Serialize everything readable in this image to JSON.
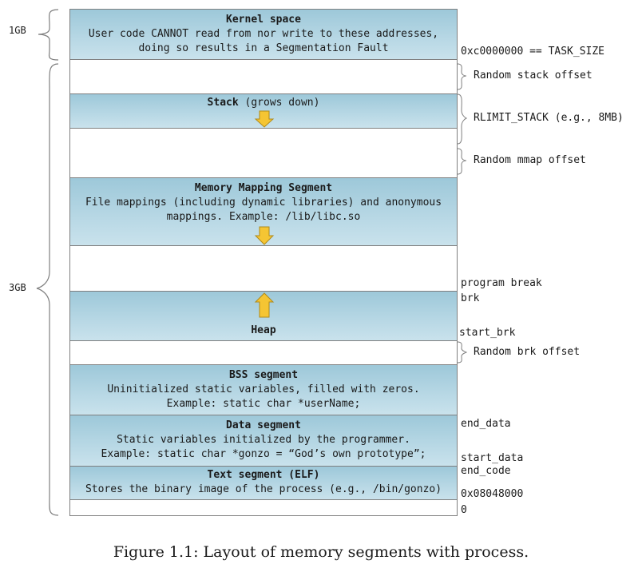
{
  "sizes": {
    "kernel": "1GB",
    "user": "3GB"
  },
  "segments": {
    "kernel": {
      "title": "Kernel space",
      "desc": "User code CANNOT read from nor write to these addresses,\ndoing so results in a Segmentation Fault"
    },
    "stack": {
      "title": "Stack",
      "suffix": " (grows down)"
    },
    "mmap": {
      "title": "Memory Mapping Segment",
      "desc": "File mappings (including dynamic libraries) and anonymous\nmappings. Example: /lib/libc.so"
    },
    "heap": {
      "title": "Heap"
    },
    "bss": {
      "title": "BSS segment",
      "desc": "Uninitialized static variables, filled with zeros.\nExample: static char *userName;"
    },
    "data": {
      "title": "Data segment",
      "desc": "Static variables initialized by the programmer.\nExample: static char *gonzo = “God’s own prototype”;"
    },
    "text": {
      "title": "Text segment (ELF)",
      "desc": "Stores the binary image of the process (e.g., /bin/gonzo)"
    }
  },
  "labels": {
    "task_size": "0xc0000000 == TASK_SIZE",
    "random_stack": "Random stack offset",
    "rlimit": "RLIMIT_STACK (e.g., 8MB)",
    "random_mmap": "Random mmap offset",
    "program_break": "program break",
    "brk": "brk",
    "start_brk": "start_brk",
    "random_brk": "Random brk offset",
    "end_data": "end_data",
    "start_data": "start_data",
    "end_code": "end_code",
    "text_addr": "0x08048000",
    "zero": "0"
  },
  "caption": "Figure 1.1: Layout of memory segments with process.",
  "colors": {
    "segment_fill": "#b3d5e3",
    "arrow_fill": "#f5c533",
    "border": "#7f7f7f"
  }
}
